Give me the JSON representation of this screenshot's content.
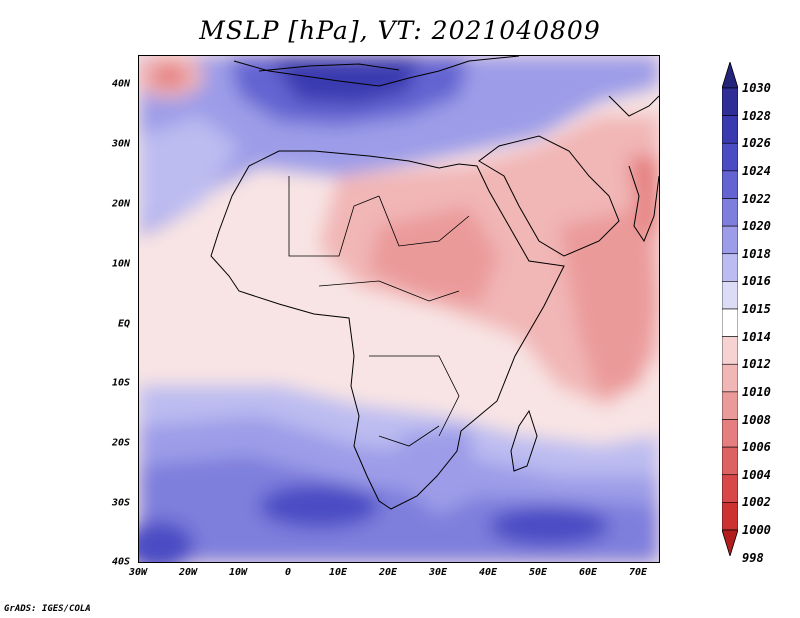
{
  "title": "MSLP [hPa], VT: 2021040809",
  "footer": "GrADS: IGES/COLA",
  "map": {
    "lon_range": [
      -30,
      75
    ],
    "lat_range": [
      -40,
      45
    ],
    "lat_labels": [
      "40N",
      "30N",
      "20N",
      "10N",
      "EQ",
      "10S",
      "20S",
      "30S",
      "40S"
    ],
    "lon_labels": [
      "30W",
      "20W",
      "10W",
      "0",
      "10E",
      "20E",
      "30E",
      "40E",
      "50E",
      "60E",
      "70E"
    ]
  },
  "colorbar": {
    "levels": [
      "1030",
      "1028",
      "1026",
      "1024",
      "1022",
      "1020",
      "1018",
      "1016",
      "1015",
      "1014",
      "1012",
      "1010",
      "1008",
      "1006",
      "1004",
      "1002",
      "1000",
      "998"
    ],
    "colors": [
      "#24247a",
      "#2e2e96",
      "#3a3ab0",
      "#4b4bc4",
      "#6363d2",
      "#7e7edd",
      "#9c9ce8",
      "#bcbcf1",
      "#dcdcf7",
      "#ffffff",
      "#f6d2d2",
      "#f1b6b6",
      "#eb9a9a",
      "#e57e7e",
      "#df6262",
      "#d84848",
      "#cd3232",
      "#b21e1e"
    ]
  }
}
